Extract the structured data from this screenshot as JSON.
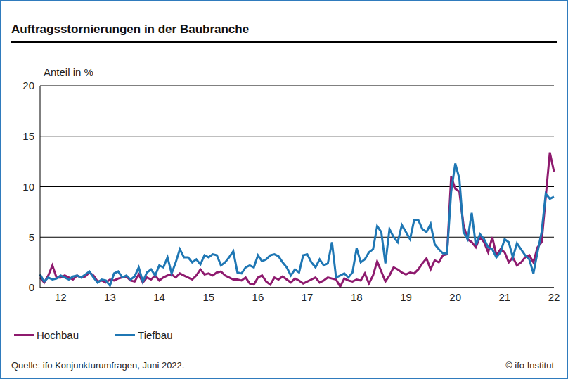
{
  "chart_data": {
    "type": "line",
    "title": "Auftragsstornierungen in der Baubranche",
    "y_label": "Anteil in %",
    "source": "Quelle: ifo Konjunkturumfragen, Juni 2022.",
    "note": "© ifo Institut",
    "categories": [
      null,
      null,
      null,
      null,
      null,
      "12",
      null,
      null,
      null,
      null,
      null,
      null,
      null,
      null,
      null,
      null,
      null,
      "13",
      null,
      null,
      null,
      null,
      null,
      null,
      null,
      null,
      null,
      null,
      null,
      "14",
      null,
      null,
      null,
      null,
      null,
      null,
      null,
      null,
      null,
      null,
      null,
      "15",
      null,
      null,
      null,
      null,
      null,
      null,
      null,
      null,
      null,
      null,
      null,
      "16",
      null,
      null,
      null,
      null,
      null,
      null,
      null,
      null,
      null,
      null,
      null,
      "17",
      null,
      null,
      null,
      null,
      null,
      null,
      null,
      null,
      null,
      null,
      null,
      "18",
      null,
      null,
      null,
      null,
      null,
      null,
      null,
      null,
      null,
      null,
      null,
      "19",
      null,
      null,
      null,
      null,
      null,
      null,
      null,
      null,
      null,
      null,
      null,
      "20",
      null,
      null,
      null,
      null,
      null,
      null,
      null,
      null,
      null,
      null,
      null,
      "21",
      null,
      null,
      null,
      null,
      null,
      null,
      null,
      null,
      null,
      null,
      null,
      "22"
    ],
    "series": [
      {
        "name": "Hochbau",
        "color": "#8e1a6e",
        "values": [
          1.0,
          0.5,
          1.2,
          2.2,
          1.0,
          1.0,
          1.2,
          1.0,
          0.8,
          1.2,
          1.0,
          1.1,
          1.5,
          1.2,
          0.6,
          0.7,
          0.5,
          0.8,
          0.7,
          0.9,
          1.0,
          1.1,
          0.7,
          0.6,
          1.3,
          0.5,
          1.0,
          0.8,
          1.2,
          0.7,
          1.0,
          1.2,
          1.3,
          1.0,
          1.4,
          1.2,
          1.0,
          0.8,
          1.2,
          1.8,
          1.3,
          1.4,
          1.2,
          1.5,
          1.6,
          1.2,
          1.0,
          0.8,
          0.8,
          0.7,
          1.0,
          0.4,
          0.3,
          1.0,
          1.2,
          0.6,
          0.3,
          1.0,
          0.8,
          1.1,
          0.8,
          0.5,
          0.9,
          0.7,
          0.4,
          0.6,
          0.8,
          1.0,
          0.5,
          0.7,
          1.0,
          0.9,
          0.8,
          0.1,
          0.9,
          0.7,
          0.6,
          0.8,
          0.7,
          1.4,
          0.4,
          1.2,
          2.6,
          1.6,
          0.6,
          1.2,
          2.0,
          1.8,
          1.5,
          1.3,
          1.5,
          1.4,
          1.8,
          2.4,
          2.9,
          1.8,
          2.7,
          2.5,
          3.2,
          3.3,
          11.0,
          9.8,
          9.5,
          6.2,
          4.8,
          4.5,
          4.0,
          5.0,
          4.5,
          3.5,
          5.0,
          3.2,
          3.8,
          3.5,
          2.5,
          3.0,
          2.2,
          2.5,
          3.0,
          3.2,
          2.5,
          4.0,
          4.5,
          9.0,
          13.4,
          11.5
        ]
      },
      {
        "name": "Tiefbau",
        "color": "#1f77b4",
        "values": [
          1.3,
          0.6,
          1.0,
          0.8,
          0.9,
          1.2,
          1.0,
          0.8,
          1.1,
          1.2,
          1.0,
          1.3,
          1.6,
          1.0,
          0.5,
          0.8,
          0.7,
          0.2,
          1.4,
          1.6,
          1.0,
          1.2,
          0.8,
          1.1,
          2.0,
          0.6,
          1.5,
          1.8,
          1.2,
          2.2,
          2.0,
          3.0,
          1.4,
          2.5,
          3.8,
          3.0,
          3.0,
          2.5,
          2.8,
          2.3,
          3.2,
          3.0,
          3.3,
          3.2,
          2.2,
          2.5,
          3.0,
          3.6,
          1.5,
          1.4,
          2.0,
          2.2,
          2.0,
          3.2,
          2.6,
          2.8,
          3.2,
          3.3,
          3.1,
          2.5,
          2.0,
          1.2,
          1.8,
          1.5,
          3.2,
          3.3,
          2.5,
          2.0,
          2.8,
          2.2,
          2.4,
          4.5,
          1.0,
          1.2,
          1.4,
          1.0,
          1.5,
          3.9,
          2.5,
          2.8,
          3.5,
          3.8,
          6.1,
          5.5,
          2.4,
          5.8,
          5.0,
          4.5,
          6.2,
          5.5,
          4.8,
          6.7,
          6.7,
          5.8,
          5.5,
          6.3,
          4.3,
          3.8,
          3.4,
          3.4,
          9.5,
          12.3,
          10.8,
          5.5,
          4.8,
          7.4,
          4.2,
          5.3,
          4.8,
          4.0,
          3.8,
          3.0,
          3.5,
          4.8,
          4.5,
          3.0,
          4.4,
          3.8,
          3.2,
          2.8,
          1.4,
          3.5,
          5.5,
          9.3,
          8.8,
          9.0
        ]
      }
    ],
    "ylim": [
      0,
      20
    ],
    "yticks": [
      0,
      5,
      10,
      15,
      20
    ],
    "grid": true,
    "legend": "bottom-left"
  }
}
